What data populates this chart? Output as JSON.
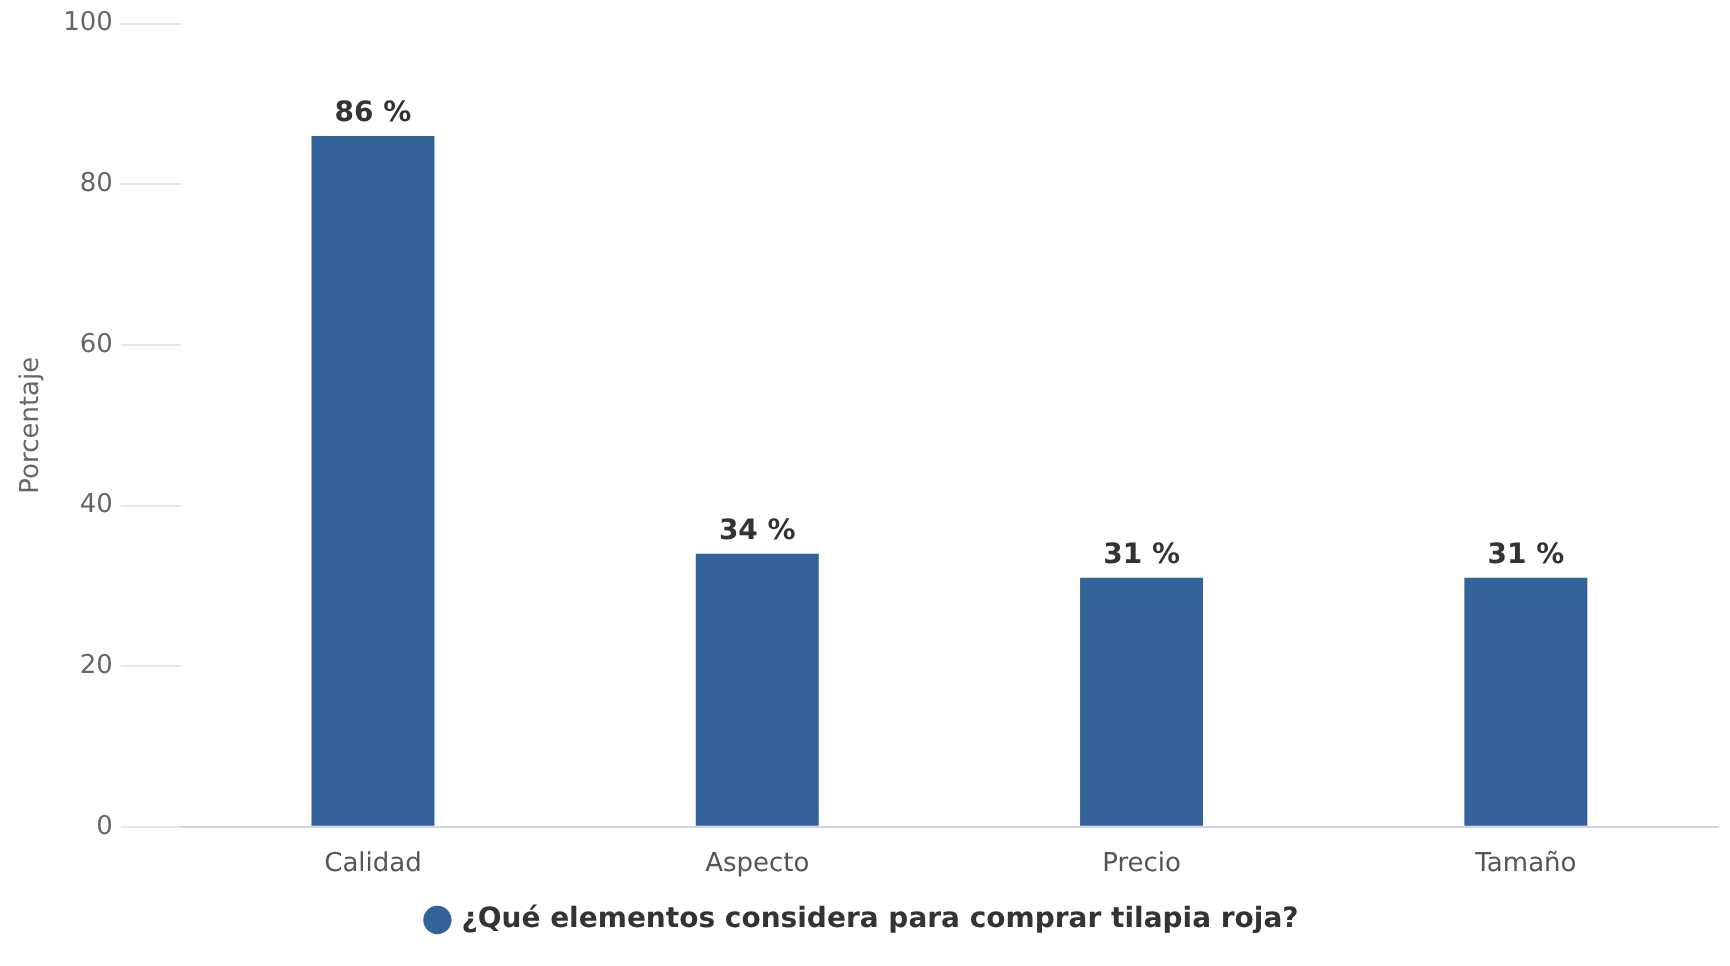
{
  "chart_data": {
    "type": "bar",
    "ylabel": "Porcentaje",
    "categories": [
      "Calidad",
      "Aspecto",
      "Precio",
      "Tamaño"
    ],
    "series": [
      {
        "name": "¿Qué elementos considera para comprar tilapia roja?",
        "color": "#336199",
        "values": [
          86,
          34,
          31,
          31
        ]
      }
    ],
    "value_labels": [
      "86 %",
      "34 %",
      "31 %",
      "31 %"
    ],
    "ylim": [
      0,
      100
    ],
    "yticks": [
      0,
      20,
      40,
      60,
      80,
      100
    ],
    "grid": false,
    "legend": "bottom"
  }
}
